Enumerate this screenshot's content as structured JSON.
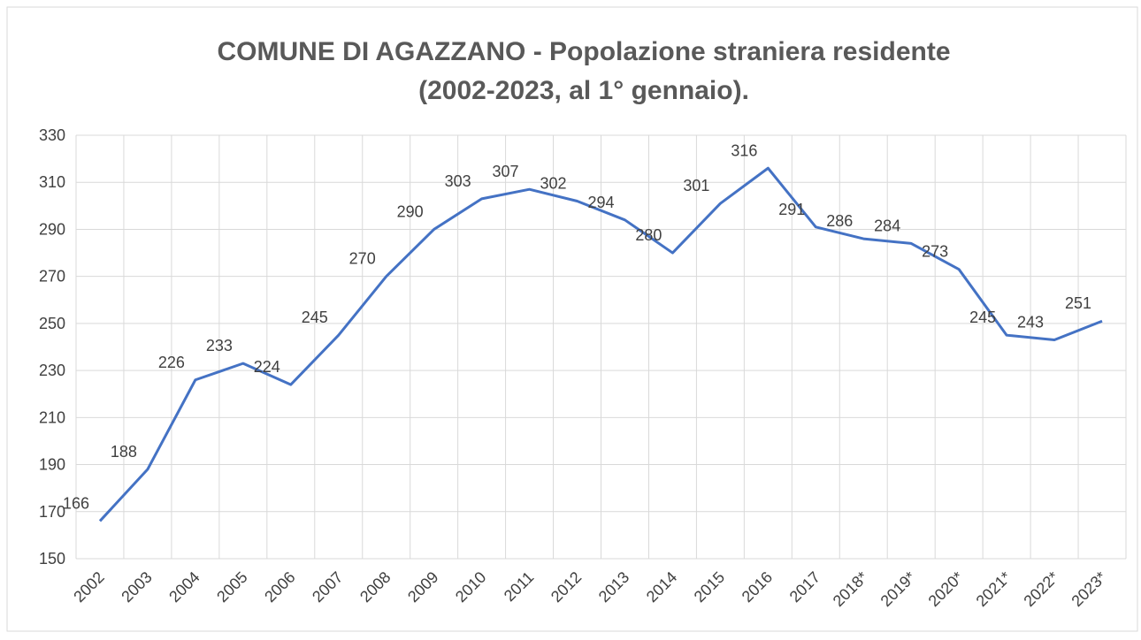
{
  "chart_data": {
    "type": "line",
    "title": [
      "COMUNE DI AGAZZANO - Popolazione straniera residente",
      "(2002-2023, al 1° gennaio)."
    ],
    "categories": [
      "2002",
      "2003",
      "2004",
      "2005",
      "2006",
      "2007",
      "2008",
      "2009",
      "2010",
      "2011",
      "2012",
      "2013",
      "2014",
      "2015",
      "2016",
      "2017",
      "2018*",
      "2019*",
      "2020*",
      "2021*",
      "2022*",
      "2023*"
    ],
    "series": [
      {
        "color": "#4472c4",
        "values": [
          166,
          188,
          226,
          233,
          224,
          245,
          270,
          290,
          303,
          307,
          302,
          294,
          280,
          301,
          316,
          291,
          286,
          284,
          273,
          245,
          243,
          251
        ]
      }
    ],
    "ylim": [
      150,
      330
    ],
    "yticks": [
      150,
      170,
      190,
      210,
      230,
      250,
      270,
      290,
      310,
      330
    ],
    "grid": true
  }
}
